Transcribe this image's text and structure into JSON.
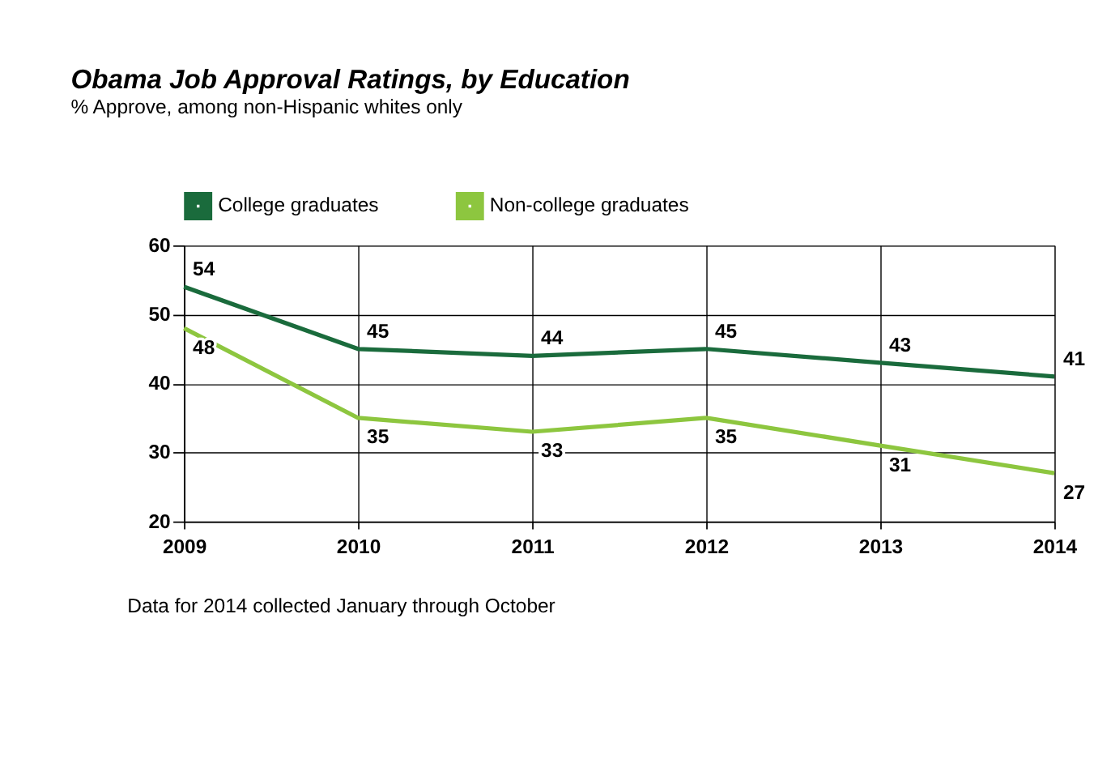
{
  "chart_data": {
    "type": "line",
    "title": "Obama Job Approval Ratings, by Education",
    "subtitle": "% Approve, among non-Hispanic whites only",
    "x": [
      2009,
      2010,
      2011,
      2012,
      2013,
      2014
    ],
    "xlim": [
      2009,
      2014
    ],
    "xticks": [
      2009,
      2010,
      2011,
      2012,
      2013,
      2014
    ],
    "ylim": [
      20,
      60
    ],
    "yticks": [
      20,
      30,
      40,
      50,
      60
    ],
    "grid": true,
    "legend": "top left",
    "data_labels": true,
    "marker": "none",
    "line_style": "solid",
    "series": [
      {
        "name": "College graduates",
        "color": "#1a6b3c",
        "values": [
          54,
          45,
          44,
          45,
          43,
          41
        ]
      },
      {
        "name": "Non-college graduates",
        "color": "#8dc63f",
        "values": [
          48,
          35,
          33,
          35,
          31,
          27
        ]
      }
    ],
    "annotations": [
      "Data for 2014 collected January through October"
    ]
  }
}
